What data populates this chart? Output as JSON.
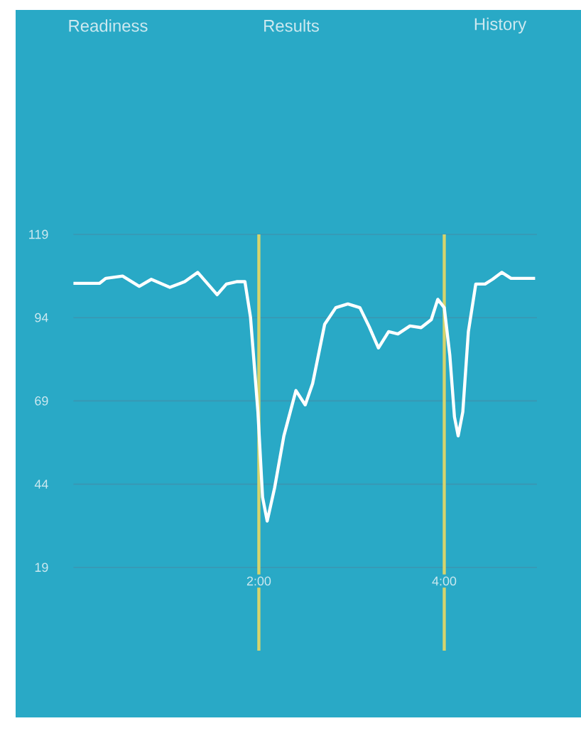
{
  "chart_data": {
    "type": "line",
    "annotations": [
      "Readiness",
      "Results",
      "History"
    ],
    "x": [
      0,
      0.28,
      0.35,
      0.53,
      0.71,
      0.84,
      1.04,
      1.2,
      1.34,
      1.45,
      1.55,
      1.65,
      1.76,
      1.85,
      1.91,
      1.99,
      2.04,
      2.09,
      2.17,
      2.27,
      2.4,
      2.5,
      2.58,
      2.71,
      2.83,
      2.96,
      3.09,
      3.19,
      3.29,
      3.4,
      3.5,
      3.63,
      3.75,
      3.86,
      3.93,
      4.0,
      4.06,
      4.11,
      4.15,
      4.2,
      4.26,
      4.34,
      4.44,
      4.52,
      4.62,
      4.72,
      4.98
    ],
    "series": [
      {
        "color": "#ffffff",
        "values": [
          104.3,
          104.3,
          105.8,
          106.5,
          103.4,
          105.5,
          103.1,
          104.8,
          107.6,
          104.1,
          100.9,
          104.1,
          104.8,
          104.8,
          94.1,
          65.7,
          40.1,
          32.9,
          42.9,
          58.5,
          72.1,
          67.8,
          74.2,
          92.0,
          97.0,
          98.1,
          97.0,
          91.3,
          84.9,
          89.8,
          89.1,
          91.5,
          91.0,
          93.4,
          99.5,
          97.0,
          82.7,
          64.2,
          58.5,
          65.7,
          89.8,
          104.1,
          104.1,
          105.5,
          107.6,
          105.8,
          105.8
        ]
      }
    ],
    "xlim": [
      0,
      5
    ],
    "ylim": [
      -6,
      119
    ],
    "xticks": [
      {
        "value": 2,
        "label": "2:00"
      },
      {
        "value": 4,
        "label": "4:00"
      }
    ],
    "yticks": [
      19,
      44,
      69,
      94,
      119
    ],
    "grid": "y",
    "marker": "none",
    "line_style": "solid",
    "ref_lines": [
      {
        "axis": "x",
        "value": 2,
        "color": "#d6d46c"
      },
      {
        "axis": "x",
        "value": 4,
        "color": "#d6d46c"
      }
    ]
  }
}
